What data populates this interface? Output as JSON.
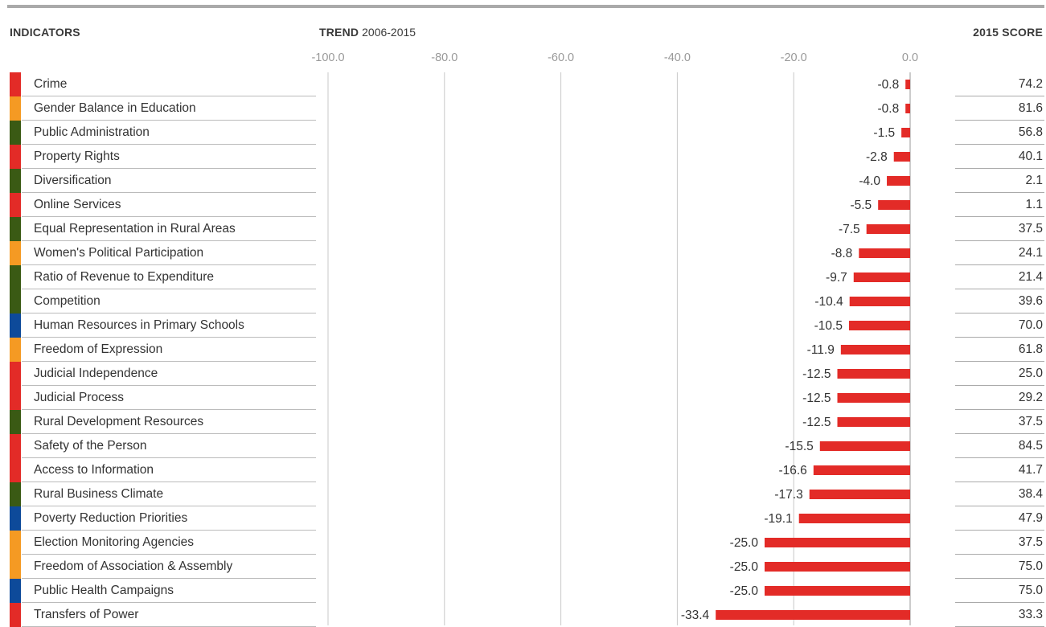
{
  "headers": {
    "indicators": "INDICATORS",
    "trend_bold": "TREND",
    "trend_rest": " 2006-2015",
    "score": "2015 SCORE"
  },
  "colors": {
    "bar": "#e32b27",
    "grid": "#c8c8c8",
    "tick": "#999999",
    "categories": {
      "red": "#e32b27",
      "orange": "#f59a23",
      "green": "#3a5a14",
      "blue": "#0d4a9a"
    }
  },
  "chart_data": {
    "type": "bar",
    "orientation": "horizontal",
    "xlim": [
      -100,
      0
    ],
    "xticks": [
      "-100.0",
      "-80.0",
      "-60.0",
      "-40.0",
      "-20.0",
      "0.0"
    ],
    "categories": [
      "Crime",
      "Gender Balance in Education",
      "Public Administration",
      "Property Rights",
      "Diversification",
      "Online Services",
      "Equal Representation in Rural Areas",
      "Women's Political Participation",
      "Ratio of Revenue to Expenditure",
      "Competition",
      "Human Resources in Primary Schools",
      "Freedom of Expression",
      "Judicial Independence",
      "Judicial Process",
      "Rural Development Resources",
      "Safety of the Person",
      "Access to Information",
      "Rural Business Climate",
      "Poverty Reduction Priorities",
      "Election Monitoring Agencies",
      "Freedom of Association & Assembly",
      "Public Health Campaigns",
      "Transfers of Power"
    ],
    "values": [
      -0.8,
      -0.8,
      -1.5,
      -2.8,
      -4.0,
      -5.5,
      -7.5,
      -8.8,
      -9.7,
      -10.4,
      -10.5,
      -11.9,
      -12.5,
      -12.5,
      -12.5,
      -15.5,
      -16.6,
      -17.3,
      -19.1,
      -25.0,
      -25.0,
      -25.0,
      -33.4
    ],
    "value_labels": [
      "-0.8",
      "-0.8",
      "-1.5",
      "-2.8",
      "-4.0",
      "-5.5",
      "-7.5",
      "-8.8",
      "-9.7",
      "-10.4",
      "-10.5",
      "-11.9",
      "-12.5",
      "-12.5",
      "-12.5",
      "-15.5",
      "-16.6",
      "-17.3",
      "-19.1",
      "-25.0",
      "-25.0",
      "-25.0",
      "-33.4"
    ],
    "scores": [
      "74.2",
      "81.6",
      "56.8",
      "40.1",
      "2.1",
      "1.1",
      "37.5",
      "24.1",
      "21.4",
      "39.6",
      "70.0",
      "61.8",
      "25.0",
      "29.2",
      "37.5",
      "84.5",
      "41.7",
      "38.4",
      "47.9",
      "37.5",
      "75.0",
      "75.0",
      "33.3"
    ],
    "category_colors": [
      "red",
      "orange",
      "green",
      "red",
      "green",
      "red",
      "green",
      "orange",
      "green",
      "green",
      "blue",
      "orange",
      "red",
      "red",
      "green",
      "red",
      "red",
      "green",
      "blue",
      "orange",
      "orange",
      "blue",
      "red"
    ]
  }
}
